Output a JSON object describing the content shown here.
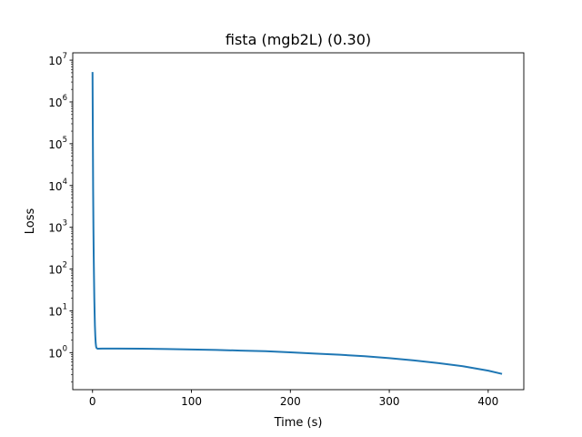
{
  "chart_data": {
    "type": "line",
    "title": "fista (mgb2L) (0.30)",
    "xlabel": "Time (s)",
    "ylabel": "Loss",
    "xscale": "linear",
    "yscale": "log",
    "xlim": [
      -20,
      436
    ],
    "ylim": [
      0.13,
      15000000
    ],
    "grid": false,
    "legend": "none",
    "x_ticks": [
      {
        "value": 0,
        "label": "0"
      },
      {
        "value": 100,
        "label": "100"
      },
      {
        "value": 200,
        "label": "200"
      },
      {
        "value": 300,
        "label": "300"
      },
      {
        "value": 400,
        "label": "400"
      }
    ],
    "y_ticks": [
      {
        "value": 1,
        "base": "10",
        "exp": "0"
      },
      {
        "value": 10,
        "base": "10",
        "exp": "1"
      },
      {
        "value": 100,
        "base": "10",
        "exp": "2"
      },
      {
        "value": 1000,
        "base": "10",
        "exp": "3"
      },
      {
        "value": 10000,
        "base": "10",
        "exp": "4"
      },
      {
        "value": 100000,
        "base": "10",
        "exp": "5"
      },
      {
        "value": 1000000,
        "base": "10",
        "exp": "6"
      },
      {
        "value": 10000000,
        "base": "10",
        "exp": "7"
      }
    ],
    "series": [
      {
        "color": "#1f77b4",
        "x": [
          0,
          0.3,
          0.6,
          0.9,
          1.2,
          1.5,
          1.8,
          2.1,
          2.4,
          2.8,
          3.2,
          3.6,
          4,
          5,
          10,
          25,
          50,
          75,
          100,
          125,
          150,
          175,
          200,
          225,
          250,
          275,
          300,
          325,
          350,
          375,
          400,
          414
        ],
        "y": [
          5200000,
          200000,
          8000,
          1000,
          200,
          60,
          20,
          9,
          4.5,
          2.5,
          1.7,
          1.4,
          1.3,
          1.24,
          1.25,
          1.25,
          1.24,
          1.22,
          1.19,
          1.16,
          1.12,
          1.08,
          1.02,
          0.95,
          0.89,
          0.82,
          0.74,
          0.65,
          0.56,
          0.47,
          0.37,
          0.31
        ]
      }
    ]
  }
}
